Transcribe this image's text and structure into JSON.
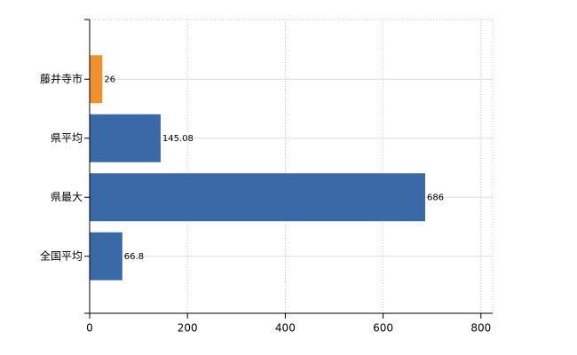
{
  "chart_data": {
    "type": "bar",
    "orientation": "horizontal",
    "categories": [
      "藤井寺市",
      "県平均",
      "県最大",
      "全国平均"
    ],
    "values": [
      26,
      145.08,
      686,
      66.8
    ],
    "colors": [
      "#f0912f",
      "#3a69a7",
      "#3a69a7",
      "#3a69a7"
    ],
    "xlim": [
      0,
      824
    ],
    "xticks": [
      0,
      200,
      400,
      600,
      800
    ],
    "grid": true
  }
}
